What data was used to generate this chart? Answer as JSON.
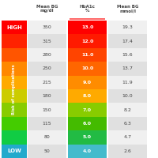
{
  "headers": [
    "Mean BG\nmg/dl",
    "HbA1c\n%",
    "Mean BG\nmmol/l"
  ],
  "rows": [
    [
      350,
      13.0,
      19.3
    ],
    [
      315,
      12.0,
      17.4
    ],
    [
      280,
      11.0,
      15.6
    ],
    [
      250,
      10.0,
      13.7
    ],
    [
      215,
      9.0,
      11.9
    ],
    [
      180,
      8.0,
      10.0
    ],
    [
      150,
      7.0,
      8.2
    ],
    [
      115,
      6.0,
      6.3
    ],
    [
      80,
      5.0,
      4.7
    ],
    [
      50,
      4.0,
      2.6
    ]
  ],
  "hba1c_colors": [
    "#ff0000",
    "#ff1a00",
    "#ff4400",
    "#ff6600",
    "#ff8c00",
    "#ffaa00",
    "#88cc00",
    "#44bb00",
    "#22bb44",
    "#44bbcc"
  ],
  "row_bg_light": "#f0f0f0",
  "row_bg_dark": "#e0e0e0",
  "sidebar_colors": [
    "#ff0000",
    "#ff2200",
    "#ff5500",
    "#ff8800",
    "#ffaa00",
    "#cccc00",
    "#88cc00",
    "#44cc00",
    "#11cc44",
    "#22aacc"
  ],
  "sidebar_label": "Risk of complications",
  "high_text": "HIGH",
  "low_text": "LOW",
  "text_color": "#444444",
  "hba1c_text_color": "#ffffff",
  "header_underline_color": "#ff6666",
  "bg_color": "#ffffff"
}
